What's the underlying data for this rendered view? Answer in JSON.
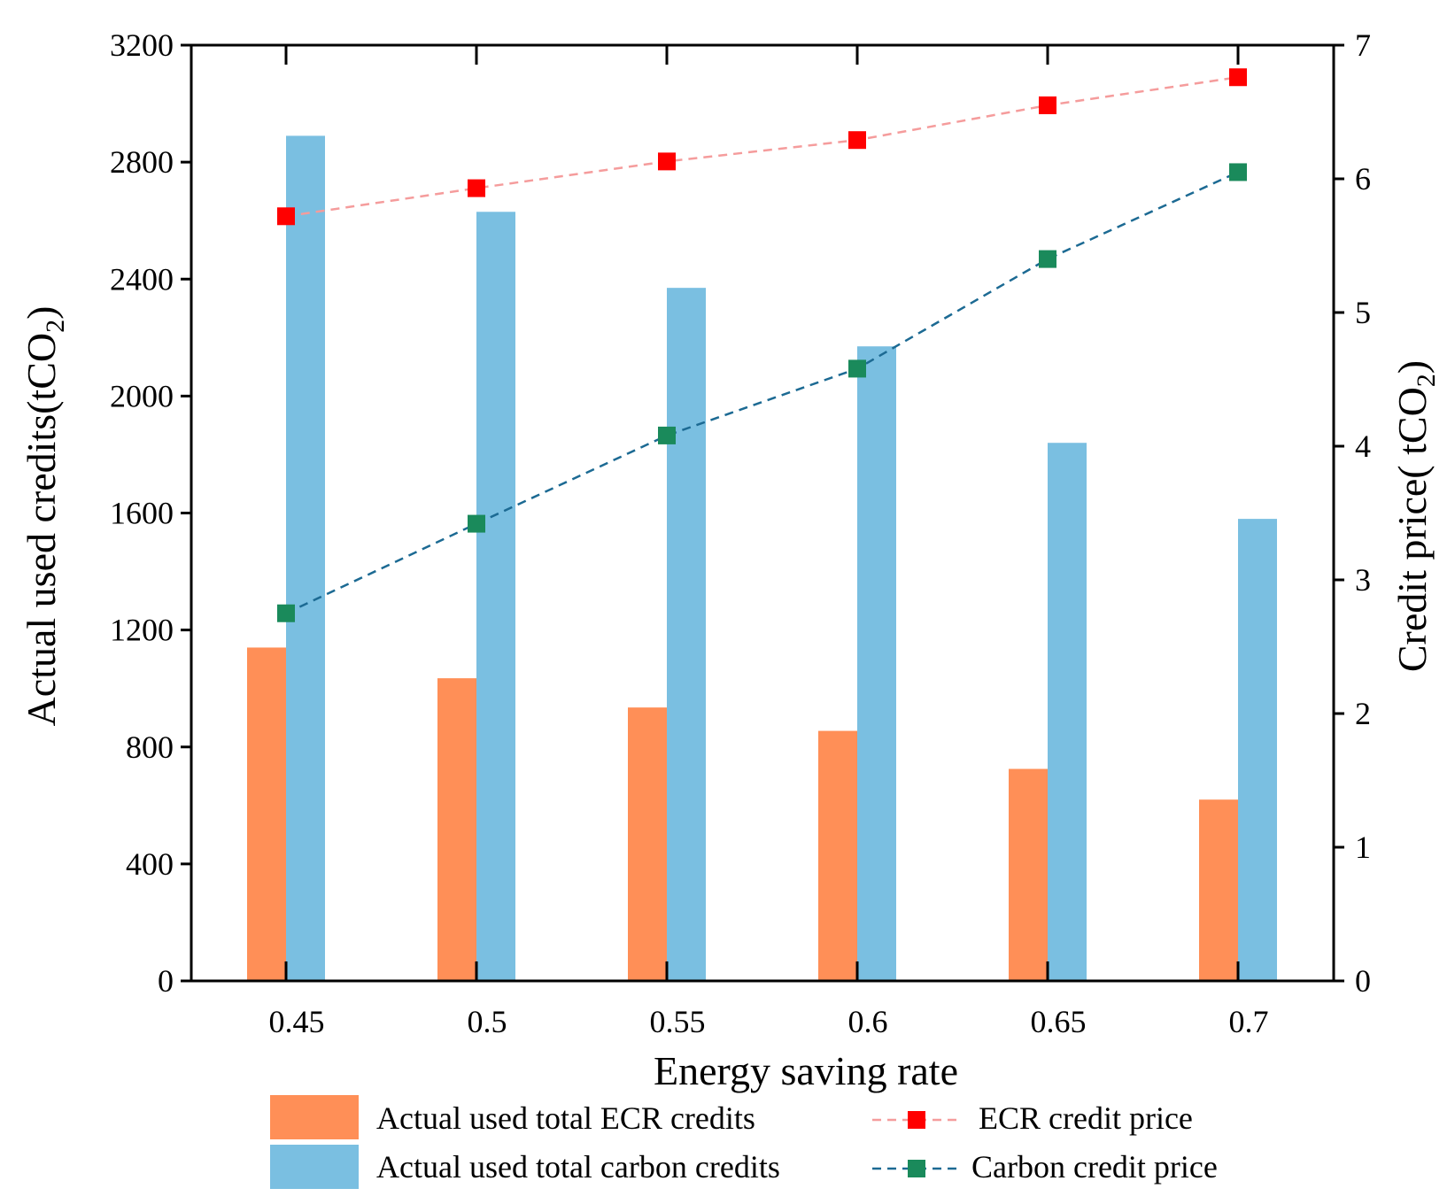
{
  "chart_data": {
    "type": "bar",
    "title": "",
    "xlabel": "Energy saving rate",
    "ylabel": "Actual used credits(tCO2)",
    "ylabel_parts": {
      "main": "Actual used credits(tCO",
      "sub": "2",
      "end": ")"
    },
    "y2label": "Credit price( tCO2)",
    "y2label_parts": {
      "main": "Credit price( tCO",
      "sub": "2",
      "end": ")"
    },
    "categories": [
      "0.45",
      "0.5",
      "0.55",
      "0.6",
      "0.65",
      "0.7"
    ],
    "ylim": [
      0,
      3200
    ],
    "y_ticks": [
      0,
      400,
      800,
      1200,
      1600,
      2000,
      2400,
      2800,
      3200
    ],
    "y2lim": [
      0,
      7
    ],
    "y2_ticks": [
      0,
      1,
      2,
      3,
      4,
      5,
      6,
      7
    ],
    "series": [
      {
        "name": "Actual used total ECR credits",
        "kind": "bar",
        "axis": "left",
        "color": "#ff8f57",
        "values": [
          1140,
          1035,
          935,
          855,
          725,
          620
        ]
      },
      {
        "name": "Actual used total carbon credits",
        "kind": "bar",
        "axis": "left",
        "color": "#7abfe1",
        "values": [
          2890,
          2630,
          2370,
          2170,
          1840,
          1580
        ]
      },
      {
        "name": "ECR credit price",
        "kind": "line",
        "axis": "right",
        "color": "#f59c9c",
        "marker_color": "#ff0000",
        "values": [
          5.72,
          5.93,
          6.13,
          6.29,
          6.55,
          6.76
        ]
      },
      {
        "name": "Carbon credit price",
        "kind": "line",
        "axis": "right",
        "color": "#1c6a93",
        "marker_color": "#1a8a5b",
        "values": [
          2.75,
          3.42,
          4.08,
          4.58,
          5.4,
          6.05
        ]
      }
    ],
    "grid": false,
    "legend_position": "bottom"
  }
}
